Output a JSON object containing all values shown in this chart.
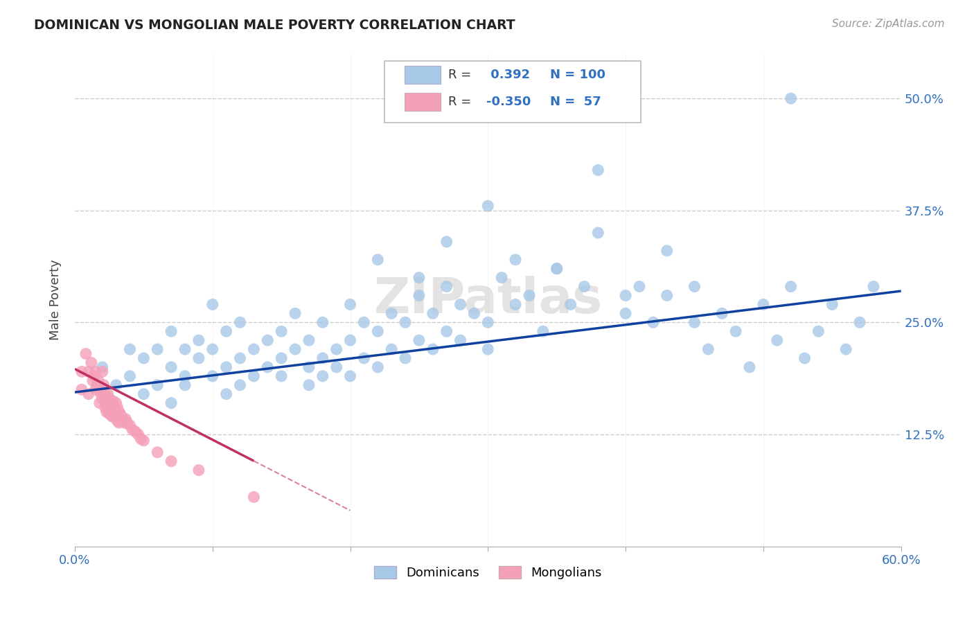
{
  "title": "DOMINICAN VS MONGOLIAN MALE POVERTY CORRELATION CHART",
  "source": "Source: ZipAtlas.com",
  "ylabel_label": "Male Poverty",
  "xlim": [
    0.0,
    0.6
  ],
  "ylim": [
    0.0,
    0.55
  ],
  "watermark": "ZIPatlas",
  "blue_color": "#a8c8e8",
  "pink_color": "#f4a0b8",
  "blue_line_color": "#1040a0",
  "pink_line_color": "#c03060",
  "legend_blue_label": "Dominicans",
  "legend_pink_label": "Mongolians",
  "R_blue": 0.392,
  "N_blue": 100,
  "R_pink": -0.35,
  "N_pink": 57,
  "background_color": "#ffffff",
  "grid_color": "#cccccc",
  "tick_color": "#3070c0",
  "blue_x": [
    0.02,
    0.03,
    0.04,
    0.04,
    0.05,
    0.05,
    0.06,
    0.06,
    0.07,
    0.07,
    0.07,
    0.08,
    0.08,
    0.08,
    0.09,
    0.09,
    0.1,
    0.1,
    0.1,
    0.11,
    0.11,
    0.11,
    0.12,
    0.12,
    0.12,
    0.13,
    0.13,
    0.14,
    0.14,
    0.15,
    0.15,
    0.15,
    0.16,
    0.16,
    0.17,
    0.17,
    0.17,
    0.18,
    0.18,
    0.18,
    0.19,
    0.19,
    0.2,
    0.2,
    0.2,
    0.21,
    0.21,
    0.22,
    0.22,
    0.23,
    0.23,
    0.24,
    0.24,
    0.25,
    0.25,
    0.26,
    0.26,
    0.27,
    0.27,
    0.28,
    0.28,
    0.29,
    0.3,
    0.3,
    0.31,
    0.32,
    0.33,
    0.34,
    0.35,
    0.36,
    0.37,
    0.38,
    0.4,
    0.41,
    0.42,
    0.43,
    0.45,
    0.46,
    0.47,
    0.48,
    0.49,
    0.5,
    0.51,
    0.52,
    0.53,
    0.54,
    0.55,
    0.56,
    0.57,
    0.58,
    0.22,
    0.25,
    0.27,
    0.3,
    0.32,
    0.35,
    0.38,
    0.4,
    0.43,
    0.45
  ],
  "blue_y": [
    0.2,
    0.18,
    0.22,
    0.19,
    0.17,
    0.21,
    0.18,
    0.22,
    0.16,
    0.2,
    0.24,
    0.18,
    0.22,
    0.19,
    0.21,
    0.23,
    0.19,
    0.22,
    0.27,
    0.2,
    0.24,
    0.17,
    0.21,
    0.25,
    0.18,
    0.22,
    0.19,
    0.23,
    0.2,
    0.21,
    0.24,
    0.19,
    0.22,
    0.26,
    0.2,
    0.23,
    0.18,
    0.21,
    0.25,
    0.19,
    0.22,
    0.2,
    0.23,
    0.27,
    0.19,
    0.25,
    0.21,
    0.24,
    0.2,
    0.26,
    0.22,
    0.25,
    0.21,
    0.28,
    0.23,
    0.26,
    0.22,
    0.29,
    0.24,
    0.27,
    0.23,
    0.26,
    0.22,
    0.25,
    0.3,
    0.27,
    0.28,
    0.24,
    0.31,
    0.27,
    0.29,
    0.42,
    0.26,
    0.29,
    0.25,
    0.28,
    0.25,
    0.22,
    0.26,
    0.24,
    0.2,
    0.27,
    0.23,
    0.29,
    0.21,
    0.24,
    0.27,
    0.22,
    0.25,
    0.29,
    0.32,
    0.3,
    0.34,
    0.38,
    0.32,
    0.31,
    0.35,
    0.28,
    0.33,
    0.29
  ],
  "pink_x": [
    0.005,
    0.005,
    0.008,
    0.01,
    0.01,
    0.012,
    0.013,
    0.014,
    0.015,
    0.015,
    0.016,
    0.017,
    0.018,
    0.018,
    0.019,
    0.02,
    0.02,
    0.02,
    0.021,
    0.021,
    0.022,
    0.022,
    0.023,
    0.023,
    0.024,
    0.024,
    0.025,
    0.025,
    0.026,
    0.026,
    0.027,
    0.027,
    0.028,
    0.028,
    0.029,
    0.03,
    0.03,
    0.031,
    0.031,
    0.032,
    0.032,
    0.033,
    0.034,
    0.035,
    0.036,
    0.037,
    0.038,
    0.04,
    0.042,
    0.044,
    0.046,
    0.048,
    0.05,
    0.06,
    0.07,
    0.09,
    0.13
  ],
  "pink_y": [
    0.195,
    0.175,
    0.215,
    0.195,
    0.17,
    0.205,
    0.185,
    0.19,
    0.175,
    0.195,
    0.18,
    0.185,
    0.175,
    0.16,
    0.17,
    0.195,
    0.175,
    0.165,
    0.18,
    0.165,
    0.17,
    0.155,
    0.165,
    0.15,
    0.17,
    0.155,
    0.165,
    0.148,
    0.162,
    0.148,
    0.158,
    0.145,
    0.162,
    0.145,
    0.155,
    0.16,
    0.145,
    0.155,
    0.14,
    0.15,
    0.138,
    0.148,
    0.145,
    0.142,
    0.138,
    0.142,
    0.138,
    0.135,
    0.13,
    0.128,
    0.125,
    0.12,
    0.118,
    0.105,
    0.095,
    0.085,
    0.055
  ],
  "blue_line_x": [
    0.0,
    0.6
  ],
  "blue_line_y": [
    0.172,
    0.285
  ],
  "pink_line_x": [
    0.0,
    0.2
  ],
  "pink_line_y": [
    0.198,
    0.04
  ]
}
